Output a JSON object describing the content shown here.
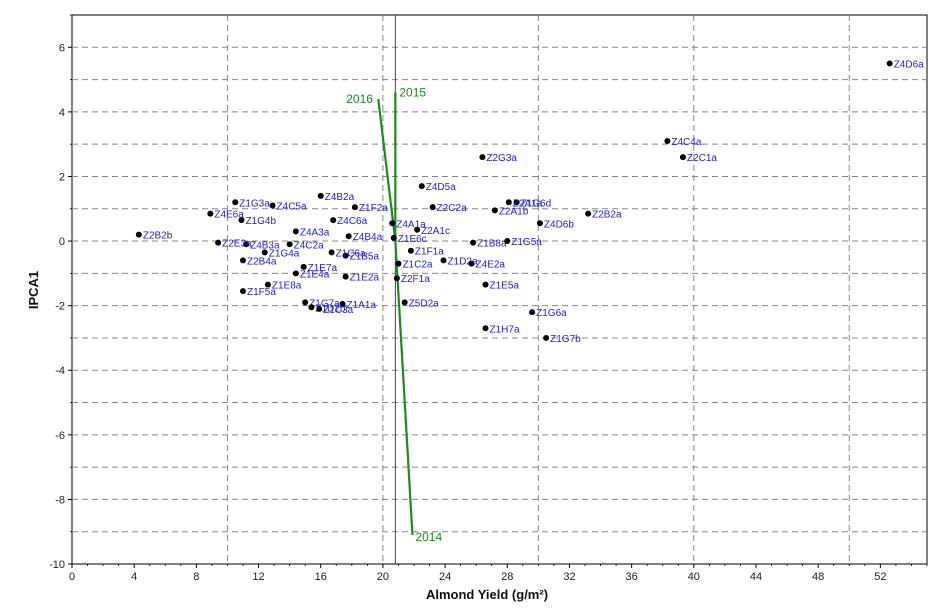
{
  "chart_data": {
    "type": "scatter",
    "xlabel": "Almond Yield (g/m²)",
    "ylabel": "IPCA1",
    "xlim": [
      0,
      55
    ],
    "ylim": [
      -10,
      7
    ],
    "xticks": [
      "0",
      "4",
      "8",
      "12",
      "16",
      "20",
      "24",
      "28",
      "32",
      "36",
      "40",
      "44",
      "48",
      "52"
    ],
    "yticks": [
      "-10",
      "-8",
      "-6",
      "-4",
      "-2",
      "0",
      "2",
      "4",
      "6"
    ],
    "grid": true,
    "reference_lines": {
      "x": 20.8,
      "y": 0
    },
    "points": [
      {
        "label": "Z4D6a",
        "x": 52.6,
        "y": 5.5
      },
      {
        "label": "Z4C4a",
        "x": 38.3,
        "y": 3.1
      },
      {
        "label": "Z2C1a",
        "x": 39.3,
        "y": 2.6
      },
      {
        "label": "Z2G3a",
        "x": 26.4,
        "y": 2.6
      },
      {
        "label": "Z4D5a",
        "x": 22.5,
        "y": 1.7
      },
      {
        "label": "Z1G6d",
        "x": 28.6,
        "y": 1.2
      },
      {
        "label": "Z2A1a",
        "x": 28.1,
        "y": 1.2
      },
      {
        "label": "Z2A1b",
        "x": 27.2,
        "y": 0.95
      },
      {
        "label": "Z2B2a",
        "x": 33.2,
        "y": 0.85
      },
      {
        "label": "Z4D6b",
        "x": 30.1,
        "y": 0.55
      },
      {
        "label": "Z1B8a",
        "x": 25.8,
        "y": -0.05
      },
      {
        "label": "Z1G5a",
        "x": 28.0,
        "y": 0.0
      },
      {
        "label": "Z2C2a",
        "x": 23.2,
        "y": 1.05
      },
      {
        "label": "Z2A1c",
        "x": 22.2,
        "y": 0.35
      },
      {
        "label": "Z1D2a",
        "x": 23.9,
        "y": -0.6
      },
      {
        "label": "Z1F1a",
        "x": 21.8,
        "y": -0.3
      },
      {
        "label": "Z4E2a",
        "x": 25.7,
        "y": -0.7
      },
      {
        "label": "Z1E5a",
        "x": 26.6,
        "y": -1.35
      },
      {
        "label": "Z1G6a",
        "x": 29.6,
        "y": -2.2
      },
      {
        "label": "Z1G7b",
        "x": 30.5,
        "y": -3.0
      },
      {
        "label": "Z1H7a",
        "x": 26.6,
        "y": -2.7
      },
      {
        "label": "Z5D2a",
        "x": 21.4,
        "y": -1.9
      },
      {
        "label": "Z2F1a",
        "x": 20.9,
        "y": -1.15
      },
      {
        "label": "Z1C2a",
        "x": 21.0,
        "y": -0.7
      },
      {
        "label": "Z1E6c",
        "x": 20.7,
        "y": 0.1
      },
      {
        "label": "Z4A1a",
        "x": 20.6,
        "y": 0.55
      },
      {
        "label": "Z1F2a",
        "x": 18.2,
        "y": 1.05
      },
      {
        "label": "Z4B4a",
        "x": 17.8,
        "y": 0.15
      },
      {
        "label": "Z4B2a",
        "x": 16.0,
        "y": 1.4
      },
      {
        "label": "Z4C6a",
        "x": 16.8,
        "y": 0.65
      },
      {
        "label": "Z4C5a",
        "x": 12.9,
        "y": 1.1
      },
      {
        "label": "Z4A3a",
        "x": 14.4,
        "y": 0.3
      },
      {
        "label": "Z4C2a",
        "x": 14.0,
        "y": -0.1
      },
      {
        "label": "Z1B5a",
        "x": 17.6,
        "y": -0.45
      },
      {
        "label": "Z1C6a",
        "x": 16.7,
        "y": -0.35
      },
      {
        "label": "Z1E7a",
        "x": 14.9,
        "y": -0.8
      },
      {
        "label": "Z1E4a",
        "x": 14.4,
        "y": -1.0
      },
      {
        "label": "Z1E2a",
        "x": 17.6,
        "y": -1.1
      },
      {
        "label": "Z1E8a",
        "x": 12.6,
        "y": -1.35
      },
      {
        "label": "Z1F5a",
        "x": 11.0,
        "y": -1.55
      },
      {
        "label": "Z1A1a",
        "x": 17.4,
        "y": -1.95
      },
      {
        "label": "Z1G7a",
        "x": 15.0,
        "y": -1.9
      },
      {
        "label": "Z1D2b",
        "x": 15.4,
        "y": -2.05
      },
      {
        "label": "Z1C3a",
        "x": 15.9,
        "y": -2.1
      },
      {
        "label": "Z4B3a",
        "x": 11.2,
        "y": -0.1
      },
      {
        "label": "Z1G4a",
        "x": 12.4,
        "y": -0.35
      },
      {
        "label": "Z2B4a",
        "x": 11.0,
        "y": -0.6
      },
      {
        "label": "Z2E3a",
        "x": 9.4,
        "y": -0.05
      },
      {
        "label": "Z1G4b",
        "x": 10.9,
        "y": 0.65
      },
      {
        "label": "Z1G3a",
        "x": 10.5,
        "y": 1.2
      },
      {
        "label": "Z4E6a",
        "x": 8.9,
        "y": 0.85
      },
      {
        "label": "Z2B2b",
        "x": 4.3,
        "y": 0.2
      }
    ],
    "year_lines": [
      {
        "label": "2014",
        "x1": 20.8,
        "y1": 0,
        "x2": 21.9,
        "y2": -9.1
      },
      {
        "label": "2015",
        "x1": 20.8,
        "y1": 0,
        "x2": 20.8,
        "y2": 4.6
      },
      {
        "label": "2016",
        "x1": 20.8,
        "y1": 0,
        "x2": 19.7,
        "y2": 4.4
      }
    ],
    "colors": {
      "points": "#000000",
      "point_labels": "#1f1fd6",
      "year_lines": "#1f8a1f",
      "grid": "#888888"
    }
  }
}
